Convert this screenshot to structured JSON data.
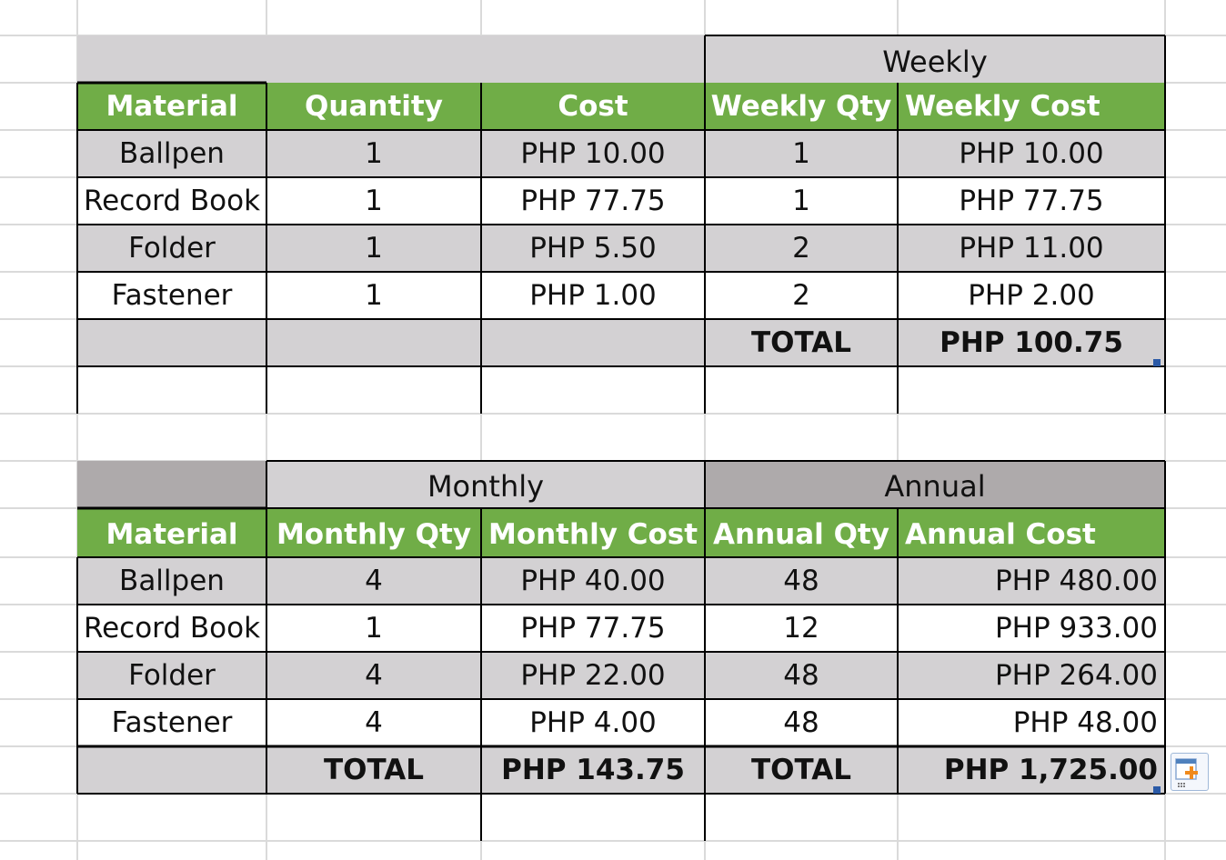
{
  "weekly_table": {
    "group_header": "Weekly",
    "headers": [
      "Material",
      "Quantity",
      "Cost",
      "Weekly Qty",
      "Weekly Cost"
    ],
    "rows": [
      [
        "Ballpen",
        "1",
        "PHP 10.00",
        "1",
        "PHP 10.00"
      ],
      [
        "Record Book",
        "1",
        "PHP 77.75",
        "1",
        "PHP 77.75"
      ],
      [
        "Folder",
        "1",
        "PHP 5.50",
        "2",
        "PHP 11.00"
      ],
      [
        "Fastener",
        "1",
        "PHP 1.00",
        "2",
        "PHP 2.00"
      ]
    ],
    "total_label": "TOTAL",
    "total_value": "PHP 100.75"
  },
  "period_table": {
    "group_headers": [
      "Monthly",
      "Annual"
    ],
    "headers": [
      "Material",
      "Monthly Qty",
      "Monthly Cost",
      "Annual Qty",
      "Annual Cost"
    ],
    "rows": [
      [
        "Ballpen",
        "4",
        "PHP 40.00",
        "48",
        "PHP 480.00"
      ],
      [
        "Record Book",
        "1",
        "PHP 77.75",
        "12",
        "PHP 933.00"
      ],
      [
        "Folder",
        "4",
        "PHP 22.00",
        "48",
        "PHP 264.00"
      ],
      [
        "Fastener",
        "4",
        "PHP 4.00",
        "48",
        "PHP 48.00"
      ]
    ],
    "total_label_1": "TOTAL",
    "total_value_1": "PHP 143.75",
    "total_label_2": "TOTAL",
    "total_value_2": "PHP 1,725.00"
  },
  "paste_options_icon": "paste-options-icon",
  "colors": {
    "header_green": "#70ad47",
    "band_gray": "#d3d1d3",
    "group_header_gray": "#aeaaab",
    "gridline": "#dadada",
    "border": "#000000"
  }
}
